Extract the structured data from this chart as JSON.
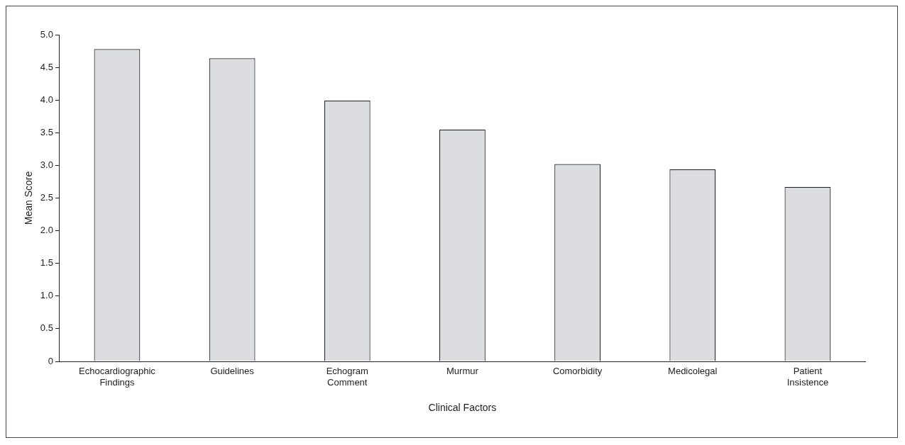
{
  "chart_data": {
    "type": "bar",
    "xlabel": "Clinical Factors",
    "ylabel": "Mean Score",
    "categories": [
      "Echocardiographic Findings",
      "Guidelines",
      "Echogram Comment",
      "Murmur",
      "Comorbidity",
      "Medicolegal",
      "Patient Insistence"
    ],
    "values": [
      4.78,
      4.64,
      3.99,
      3.55,
      3.02,
      2.94,
      2.67
    ],
    "color": "#dcdde0",
    "ylim": [
      0,
      5
    ],
    "yticks": [
      {
        "value": 0,
        "label": "0"
      },
      {
        "value": 0.5,
        "label": "0.5"
      },
      {
        "value": 1,
        "label": "1.0"
      },
      {
        "value": 1.5,
        "label": "1.5"
      },
      {
        "value": 2,
        "label": "2.0"
      },
      {
        "value": 2.5,
        "label": "2.5"
      },
      {
        "value": 3,
        "label": "3.0"
      },
      {
        "value": 3.5,
        "label": "3.5"
      },
      {
        "value": 4,
        "label": "4.0"
      },
      {
        "value": 4.5,
        "label": "4.5"
      },
      {
        "value": 5,
        "label": "5.0"
      }
    ],
    "grid": false,
    "legend": false
  }
}
